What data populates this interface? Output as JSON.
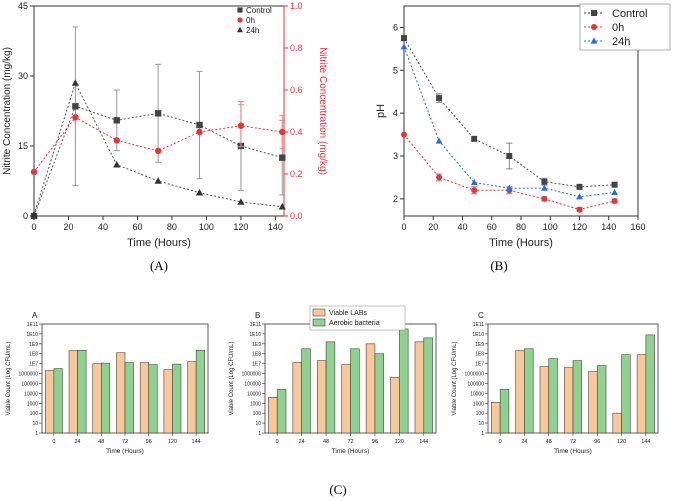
{
  "captions": {
    "a": "(A)",
    "b": "(B)",
    "c": "(C)"
  },
  "colors": {
    "black": "#333333",
    "red": "#e8333a",
    "blue": "#2a6fe0",
    "gray": "#555555",
    "lab": "#f9c79a",
    "aer": "#8fd18f",
    "barEdge": "#444444"
  },
  "chart_data": [
    {
      "id": "A",
      "type": "line",
      "title": "",
      "xlabel": "Time (Hours)",
      "ylabel": "Nitrite Concentration (mg/kg)",
      "ylabel_right": "Nitrite Concentration (mg/kg)",
      "xlim": [
        0,
        145
      ],
      "ylim": [
        0,
        45
      ],
      "ylim_right": [
        0,
        1.0
      ],
      "xticks": [
        "0",
        "20",
        "40",
        "60",
        "80",
        "100",
        "120",
        "140"
      ],
      "yticks": [
        "0",
        "15",
        "30",
        "45"
      ],
      "yticks_right": [
        "0.0",
        "0.2",
        "0.4",
        "0.6",
        "0.8",
        "1.0"
      ],
      "series": [
        {
          "name": "Control",
          "axis": "left",
          "x": [
            0,
            24,
            48,
            72,
            96,
            120,
            144
          ],
          "y": [
            0,
            23.5,
            20.5,
            22,
            19.5,
            15,
            12.5
          ],
          "err": [
            0,
            17,
            6.5,
            10.5,
            11.5,
            9.5,
            8
          ]
        },
        {
          "name": "0h",
          "axis": "right",
          "x": [
            0,
            24,
            48,
            72,
            96,
            120,
            144
          ],
          "y": [
            0.21,
            0.47,
            0.36,
            0.31,
            0.4,
            0.43,
            0.4
          ],
          "err": [
            0,
            0,
            0,
            0,
            0,
            0.1,
            0.08
          ]
        },
        {
          "name": "24h",
          "axis": "left",
          "x": [
            0,
            24,
            48,
            72,
            96,
            120,
            144
          ],
          "y": [
            0.3,
            28.5,
            11,
            7.5,
            5,
            3,
            2
          ],
          "err": [
            0,
            0,
            0,
            0,
            0,
            0,
            0
          ]
        }
      ],
      "legend": {
        "labels": [
          "Control",
          "0h",
          "24h"
        ],
        "position": "top-right"
      }
    },
    {
      "id": "B",
      "type": "line",
      "title": "",
      "xlabel": "Time (Hours)",
      "ylabel": "pH",
      "xlim": [
        0,
        160
      ],
      "ylim": [
        1.6,
        6.5
      ],
      "xticks": [
        "0",
        "20",
        "40",
        "60",
        "80",
        "100",
        "120",
        "140",
        "160"
      ],
      "yticks": [
        "2",
        "3",
        "4",
        "5",
        "6"
      ],
      "series": [
        {
          "name": "Control",
          "x": [
            0,
            24,
            48,
            72,
            96,
            120,
            144
          ],
          "y": [
            5.75,
            4.35,
            3.4,
            3.0,
            2.4,
            2.28,
            2.33
          ],
          "err": [
            0,
            0.1,
            0,
            0.3,
            0.08,
            0.05,
            0.05
          ]
        },
        {
          "name": "0h",
          "x": [
            0,
            24,
            48,
            72,
            96,
            120,
            144
          ],
          "y": [
            3.5,
            2.5,
            2.2,
            2.2,
            2.0,
            1.75,
            1.95
          ],
          "err": [
            0,
            0.08,
            0.08,
            0.08,
            0.05,
            0.05,
            0.05
          ]
        },
        {
          "name": "24h",
          "x": [
            0,
            24,
            48,
            72,
            96,
            120,
            144
          ],
          "y": [
            5.55,
            3.35,
            2.38,
            2.25,
            2.25,
            2.05,
            2.15
          ],
          "err": [
            0,
            0,
            0,
            0,
            0,
            0,
            0
          ]
        }
      ],
      "legend": {
        "labels": [
          "Control",
          "0h",
          "24h"
        ],
        "position": "top-right"
      }
    },
    {
      "id": "C",
      "type": "bar",
      "panel_titles": [
        "A",
        "B",
        "C"
      ],
      "xlabel": "Time (Hours)",
      "ylabel": "Viable Count (Log CFU/mL)",
      "categories": [
        "0",
        "24",
        "48",
        "72",
        "96",
        "120",
        "144"
      ],
      "yticks": [
        "1",
        "10",
        "100",
        "1000",
        "10000",
        "100000",
        "1000000",
        "1E7",
        "1E8",
        "1E9",
        "1E10",
        "1E11"
      ],
      "ylim_log10": [
        0,
        11
      ],
      "legend": {
        "labels": [
          "Viable LABs",
          "Aerobic bacteria"
        ],
        "position": "top-center"
      },
      "panels": [
        {
          "title": "A",
          "series": [
            {
              "name": "Viable LABs",
              "log10_values": [
                6.3,
                8.3,
                7.0,
                8.1,
                7.1,
                6.4,
                7.2
              ]
            },
            {
              "name": "Aerobic bacteria",
              "log10_values": [
                6.5,
                8.35,
                7.05,
                7.1,
                6.9,
                6.95,
                8.35
              ]
            }
          ]
        },
        {
          "title": "B",
          "series": [
            {
              "name": "Viable LABs",
              "log10_values": [
                3.6,
                7.1,
                7.3,
                6.9,
                9.0,
                5.6,
                9.2
              ]
            },
            {
              "name": "Aerobic bacteria",
              "log10_values": [
                4.4,
                8.5,
                9.2,
                8.5,
                8.0,
                10.5,
                9.6
              ]
            }
          ]
        },
        {
          "title": "C",
          "series": [
            {
              "name": "Viable LABs",
              "log10_values": [
                3.1,
                8.3,
                6.7,
                6.6,
                6.2,
                2.0,
                7.9
              ]
            },
            {
              "name": "Aerobic bacteria",
              "log10_values": [
                4.4,
                8.5,
                7.5,
                7.3,
                6.8,
                7.9,
                9.9
              ]
            }
          ]
        }
      ]
    }
  ]
}
